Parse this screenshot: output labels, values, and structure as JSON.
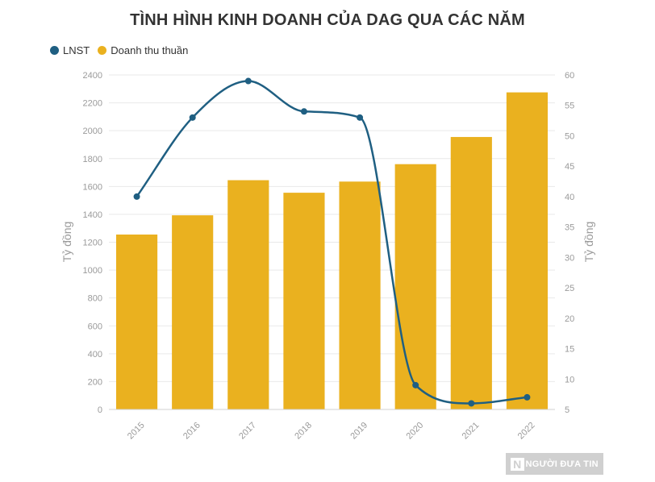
{
  "chart_data": {
    "type": "bar",
    "title": "TÌNH HÌNH KINH DOANH CỦA DAG QUA CÁC NĂM",
    "categories": [
      "2015",
      "2016",
      "2017",
      "2018",
      "2019",
      "2020",
      "2021",
      "2022"
    ],
    "series": [
      {
        "name": "LNST",
        "type": "line",
        "axis": "right",
        "color": "#1f5f82",
        "values": [
          40,
          53,
          59,
          54,
          53,
          9,
          6,
          7
        ]
      },
      {
        "name": "Doanh thu thuần",
        "type": "bar",
        "axis": "left",
        "color": "#eab11f",
        "values": [
          1255,
          1393,
          1645,
          1555,
          1635,
          1760,
          1955,
          2275
        ]
      }
    ],
    "ylabel": "Tỷ đồng",
    "y2label": "Tỷ đồng",
    "ylim": [
      0,
      2400
    ],
    "y2lim": [
      5,
      60
    ],
    "yticks": [
      "0",
      "200",
      "400",
      "600",
      "800",
      "1000",
      "1200",
      "1400",
      "1600",
      "1800",
      "2000",
      "2200",
      "2400"
    ],
    "y2ticks": [
      "5",
      "10",
      "15",
      "20",
      "25",
      "30",
      "35",
      "40",
      "45",
      "50",
      "55",
      "60"
    ],
    "grid": true,
    "legend_position": "top-left"
  },
  "watermark": {
    "badge": "N",
    "text": "NGƯỜI ĐƯA TIN"
  }
}
